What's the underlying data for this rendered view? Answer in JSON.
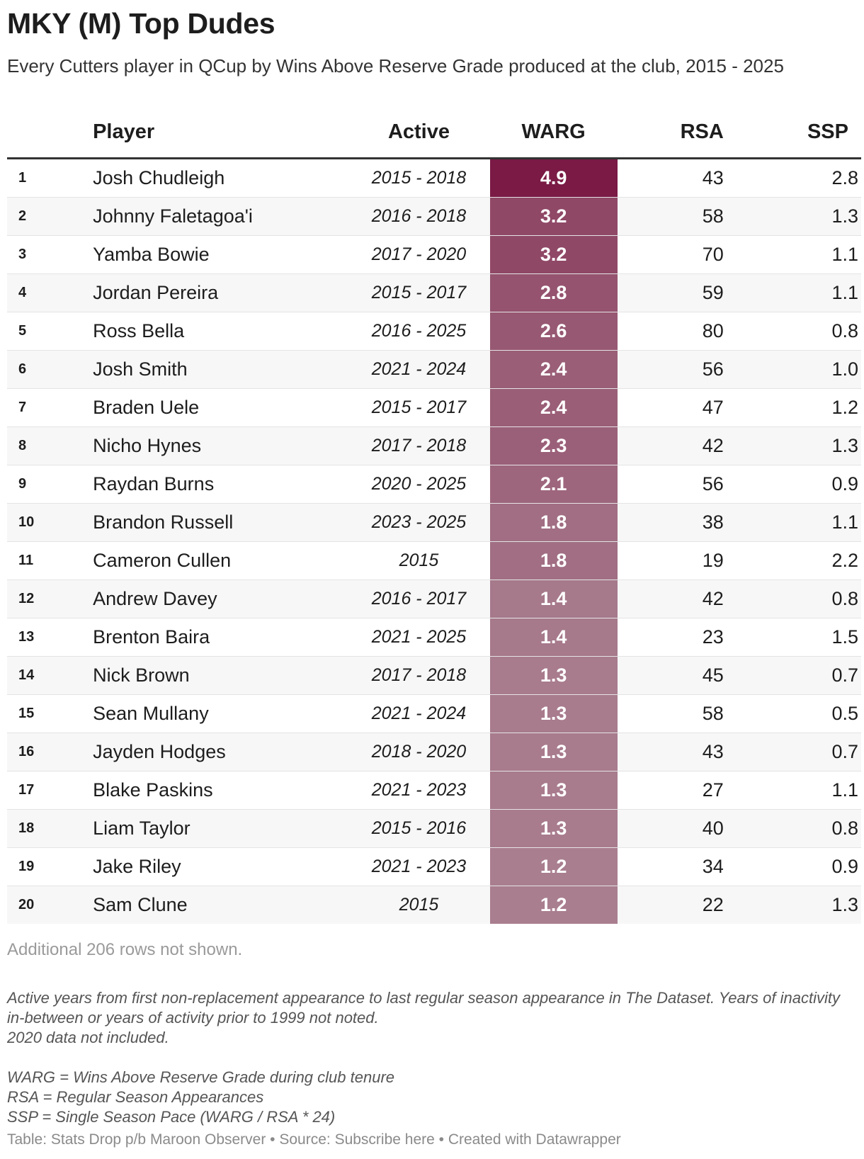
{
  "title": "MKY (M) Top Dudes",
  "subtitle": "Every Cutters player in QCup by Wins Above Reserve Grade produced at the club, 2015 - 2025",
  "headers": {
    "rank": "",
    "player": "Player",
    "active": "Active",
    "warg": "WARG",
    "rsa": "RSA",
    "ssp": "SSP"
  },
  "colors": {
    "warg_max": "#7a1a45",
    "warg_min": "#a97e8f"
  },
  "chart_data": {
    "type": "table",
    "columns": [
      "",
      "Player",
      "Active",
      "WARG",
      "RSA",
      "SSP"
    ],
    "rows": [
      {
        "rank": "1",
        "player": "Josh Chudleigh",
        "active": "2015 - 2018",
        "warg": "4.9",
        "rsa": "43",
        "ssp": "2.8"
      },
      {
        "rank": "2",
        "player": "Johnny Faletagoa'i",
        "active": "2016 - 2018",
        "warg": "3.2",
        "rsa": "58",
        "ssp": "1.3"
      },
      {
        "rank": "3",
        "player": "Yamba Bowie",
        "active": "2017 - 2020",
        "warg": "3.2",
        "rsa": "70",
        "ssp": "1.1"
      },
      {
        "rank": "4",
        "player": "Jordan Pereira",
        "active": "2015 - 2017",
        "warg": "2.8",
        "rsa": "59",
        "ssp": "1.1"
      },
      {
        "rank": "5",
        "player": "Ross Bella",
        "active": "2016 - 2025",
        "warg": "2.6",
        "rsa": "80",
        "ssp": "0.8"
      },
      {
        "rank": "6",
        "player": "Josh Smith",
        "active": "2021 - 2024",
        "warg": "2.4",
        "rsa": "56",
        "ssp": "1.0"
      },
      {
        "rank": "7",
        "player": "Braden Uele",
        "active": "2015 - 2017",
        "warg": "2.4",
        "rsa": "47",
        "ssp": "1.2"
      },
      {
        "rank": "8",
        "player": "Nicho Hynes",
        "active": "2017 - 2018",
        "warg": "2.3",
        "rsa": "42",
        "ssp": "1.3"
      },
      {
        "rank": "9",
        "player": "Raydan Burns",
        "active": "2020 - 2025",
        "warg": "2.1",
        "rsa": "56",
        "ssp": "0.9"
      },
      {
        "rank": "10",
        "player": "Brandon Russell",
        "active": "2023 - 2025",
        "warg": "1.8",
        "rsa": "38",
        "ssp": "1.1"
      },
      {
        "rank": "11",
        "player": "Cameron Cullen",
        "active": "2015",
        "warg": "1.8",
        "rsa": "19",
        "ssp": "2.2"
      },
      {
        "rank": "12",
        "player": "Andrew Davey",
        "active": "2016 - 2017",
        "warg": "1.4",
        "rsa": "42",
        "ssp": "0.8"
      },
      {
        "rank": "13",
        "player": "Brenton Baira",
        "active": "2021 - 2025",
        "warg": "1.4",
        "rsa": "23",
        "ssp": "1.5"
      },
      {
        "rank": "14",
        "player": "Nick Brown",
        "active": "2017 - 2018",
        "warg": "1.3",
        "rsa": "45",
        "ssp": "0.7"
      },
      {
        "rank": "15",
        "player": "Sean Mullany",
        "active": "2021 - 2024",
        "warg": "1.3",
        "rsa": "58",
        "ssp": "0.5"
      },
      {
        "rank": "16",
        "player": "Jayden Hodges",
        "active": "2018 - 2020",
        "warg": "1.3",
        "rsa": "43",
        "ssp": "0.7"
      },
      {
        "rank": "17",
        "player": "Blake Paskins",
        "active": "2021 - 2023",
        "warg": "1.3",
        "rsa": "27",
        "ssp": "1.1"
      },
      {
        "rank": "18",
        "player": "Liam Taylor",
        "active": "2015 - 2016",
        "warg": "1.3",
        "rsa": "40",
        "ssp": "0.8"
      },
      {
        "rank": "19",
        "player": "Jake Riley",
        "active": "2021 - 2023",
        "warg": "1.2",
        "rsa": "34",
        "ssp": "0.9"
      },
      {
        "rank": "20",
        "player": "Sam Clune",
        "active": "2015",
        "warg": "1.2",
        "rsa": "22",
        "ssp": "1.3"
      }
    ]
  },
  "more_rows": "Additional 206 rows not shown.",
  "notes": [
    "Active years from first non-replacement appearance to last regular season appearance in The Dataset. Years of inactivity in-between or years of activity prior to 1999 not noted.",
    "2020 data not included.",
    "",
    "WARG = Wins Above Reserve Grade during club tenure",
    "RSA = Regular Season Appearances",
    "SSP = Single Season Pace (WARG / RSA * 24)"
  ],
  "footer": "Table: Stats Drop p/b Maroon Observer • Source: Subscribe here • Created with Datawrapper"
}
